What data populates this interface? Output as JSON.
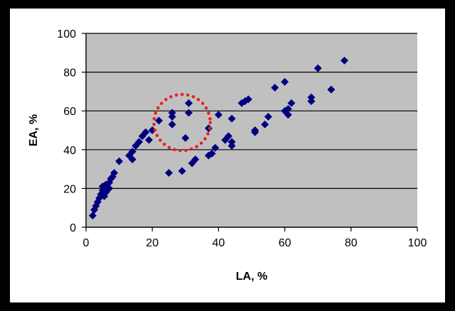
{
  "chart_data": {
    "type": "scatter",
    "title": "",
    "xlabel": "LA, %",
    "ylabel": "EA, %",
    "xlim": [
      0,
      100
    ],
    "ylim": [
      0,
      100
    ],
    "x_ticks": [
      "0",
      "20",
      "40",
      "60",
      "80",
      "100"
    ],
    "y_ticks": [
      "0",
      "20",
      "40",
      "60",
      "80",
      "100"
    ],
    "grid": "horizontal",
    "legend": "none",
    "colors": {
      "plot_background": "#c0c0c0",
      "marker": "#00007f",
      "gridline": "#000000",
      "highlight_circle": "#e82020"
    },
    "points": [
      {
        "x": 2,
        "y": 6
      },
      {
        "x": 2.5,
        "y": 9
      },
      {
        "x": 3,
        "y": 11
      },
      {
        "x": 3.5,
        "y": 13
      },
      {
        "x": 4,
        "y": 15
      },
      {
        "x": 4.5,
        "y": 17
      },
      {
        "x": 5,
        "y": 19
      },
      {
        "x": 5,
        "y": 21
      },
      {
        "x": 5.5,
        "y": 16
      },
      {
        "x": 6,
        "y": 18
      },
      {
        "x": 6,
        "y": 22
      },
      {
        "x": 7,
        "y": 20
      },
      {
        "x": 7,
        "y": 23
      },
      {
        "x": 7.5,
        "y": 25
      },
      {
        "x": 8,
        "y": 26
      },
      {
        "x": 8.5,
        "y": 28
      },
      {
        "x": 10,
        "y": 34
      },
      {
        "x": 13,
        "y": 37
      },
      {
        "x": 14,
        "y": 35
      },
      {
        "x": 14,
        "y": 39
      },
      {
        "x": 15,
        "y": 42
      },
      {
        "x": 16,
        "y": 44
      },
      {
        "x": 17,
        "y": 47
      },
      {
        "x": 18,
        "y": 49
      },
      {
        "x": 19,
        "y": 45
      },
      {
        "x": 20,
        "y": 50
      },
      {
        "x": 22,
        "y": 55
      },
      {
        "x": 25,
        "y": 28
      },
      {
        "x": 26,
        "y": 53
      },
      {
        "x": 26,
        "y": 57
      },
      {
        "x": 26,
        "y": 59
      },
      {
        "x": 29,
        "y": 29
      },
      {
        "x": 30,
        "y": 46
      },
      {
        "x": 31,
        "y": 59
      },
      {
        "x": 31,
        "y": 64
      },
      {
        "x": 32,
        "y": 33
      },
      {
        "x": 33,
        "y": 35
      },
      {
        "x": 37,
        "y": 37
      },
      {
        "x": 37,
        "y": 51
      },
      {
        "x": 38,
        "y": 38
      },
      {
        "x": 39,
        "y": 41
      },
      {
        "x": 40,
        "y": 58
      },
      {
        "x": 42,
        "y": 45
      },
      {
        "x": 43,
        "y": 47
      },
      {
        "x": 44,
        "y": 42
      },
      {
        "x": 44,
        "y": 44
      },
      {
        "x": 44,
        "y": 56
      },
      {
        "x": 47,
        "y": 64
      },
      {
        "x": 48,
        "y": 65
      },
      {
        "x": 49,
        "y": 66
      },
      {
        "x": 51,
        "y": 49
      },
      {
        "x": 51,
        "y": 50
      },
      {
        "x": 54,
        "y": 53
      },
      {
        "x": 55,
        "y": 57
      },
      {
        "x": 57,
        "y": 72
      },
      {
        "x": 60,
        "y": 60
      },
      {
        "x": 60,
        "y": 75
      },
      {
        "x": 61,
        "y": 58
      },
      {
        "x": 61,
        "y": 61
      },
      {
        "x": 62,
        "y": 64
      },
      {
        "x": 68,
        "y": 65
      },
      {
        "x": 68,
        "y": 67
      },
      {
        "x": 70,
        "y": 82
      },
      {
        "x": 74,
        "y": 71
      },
      {
        "x": 78,
        "y": 86
      }
    ],
    "annotations": [
      {
        "type": "dotted-circle",
        "cx": 29,
        "cy": 54,
        "rx": 8.5,
        "ry": 14.5
      }
    ]
  }
}
